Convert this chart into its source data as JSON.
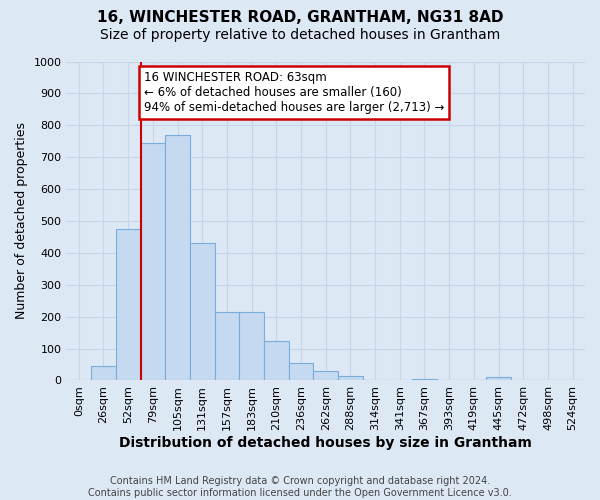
{
  "title": "16, WINCHESTER ROAD, GRANTHAM, NG31 8AD",
  "subtitle": "Size of property relative to detached houses in Grantham",
  "xlabel": "Distribution of detached houses by size in Grantham",
  "ylabel": "Number of detached properties",
  "footer_line1": "Contains HM Land Registry data © Crown copyright and database right 2024.",
  "footer_line2": "Contains public sector information licensed under the Open Government Licence v3.0.",
  "bin_labels": [
    "0sqm",
    "26sqm",
    "52sqm",
    "79sqm",
    "105sqm",
    "131sqm",
    "157sqm",
    "183sqm",
    "210sqm",
    "236sqm",
    "262sqm",
    "288sqm",
    "314sqm",
    "341sqm",
    "367sqm",
    "393sqm",
    "419sqm",
    "445sqm",
    "472sqm",
    "498sqm",
    "524sqm"
  ],
  "bar_values": [
    0,
    45,
    475,
    745,
    770,
    430,
    215,
    215,
    125,
    55,
    30,
    15,
    0,
    0,
    5,
    0,
    0,
    10,
    0,
    0,
    0
  ],
  "bar_color": "#c5d9f0",
  "bar_edge_color": "#7aadda",
  "vline_x": 2.5,
  "annotation_text": "16 WINCHESTER ROAD: 63sqm\n← 6% of detached houses are smaller (160)\n94% of semi-detached houses are larger (2,713) →",
  "annotation_box_color": "#ffffff",
  "annotation_box_edge_color": "#cc0000",
  "vline_color": "#cc0000",
  "ylim": [
    0,
    1000
  ],
  "yticks": [
    0,
    100,
    200,
    300,
    400,
    500,
    600,
    700,
    800,
    900,
    1000
  ],
  "grid_color": "#c8d4e8",
  "background_color": "#dde8f5",
  "title_fontsize": 11,
  "subtitle_fontsize": 10,
  "xlabel_fontsize": 10,
  "ylabel_fontsize": 9,
  "tick_fontsize": 8,
  "footer_fontsize": 7
}
